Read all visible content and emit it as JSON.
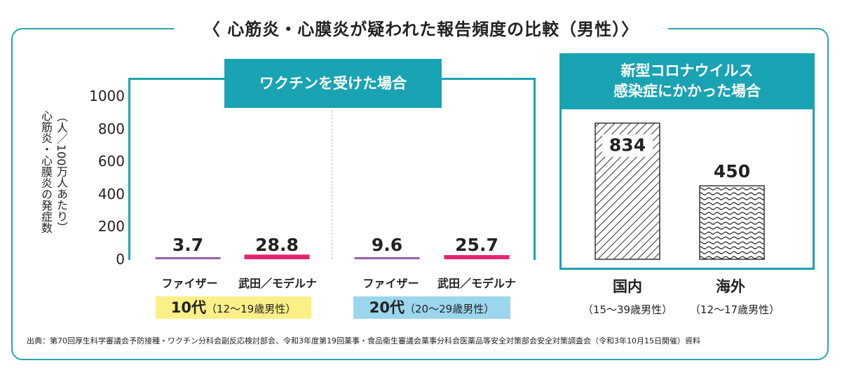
{
  "title": "〈 心筋炎・心膜炎が疑われた報告頻度の比較（男性）〉",
  "y_axis_label_lines": [
    "心筋炎・心膜炎の発症数",
    "（人／100万人あたり）"
  ],
  "vaccine_box_label": "ワクチンを受けた場合",
  "infection_box_label_lines": [
    "新型コロナウイルス",
    "感染症にかかった場合"
  ],
  "chart_data": {
    "type": "bar",
    "ylabel": "心筋炎・心膜炎の発症数（人／100万人あたり）",
    "yticks": [
      0,
      200,
      400,
      600,
      800,
      1000
    ],
    "ylim": [
      0,
      1000
    ],
    "vaccine_groups": [
      {
        "age_main": "10代",
        "age_sub": "（12〜19歳男性）",
        "color": "#fbf087",
        "bars": [
          {
            "category": "ファイザー",
            "value": 3.7,
            "label": "3.7",
            "color": "#9b5fa5"
          },
          {
            "category": "武田／モデルナ",
            "value": 28.8,
            "label": "28.8",
            "color": "#e4266f"
          }
        ]
      },
      {
        "age_main": "20代",
        "age_sub": "（20〜29歳男性）",
        "color": "#9bd6ec",
        "bars": [
          {
            "category": "ファイザー",
            "value": 9.6,
            "label": "9.6",
            "color": "#9b5fa5"
          },
          {
            "category": "武田／モデルナ",
            "value": 25.7,
            "label": "25.7",
            "color": "#e4266f"
          }
        ]
      }
    ],
    "infection_bars": [
      {
        "category": "国内",
        "sub": "（15〜39歳男性）",
        "value": 834,
        "label": "834",
        "pattern": "diagonal-hatch"
      },
      {
        "category": "海外",
        "sub": "（12〜17歳男性）",
        "value": 450,
        "label": "450",
        "pattern": "wavy"
      }
    ]
  },
  "source": "出典：第70回厚生科学審議会予防接種・ワクチン分科会副反応検討部会、令和3年度第19回薬事・食品衛生審議会薬事分科会医薬品等安全対策部会安全対策調査会（令和3年10月15日開催）資料"
}
